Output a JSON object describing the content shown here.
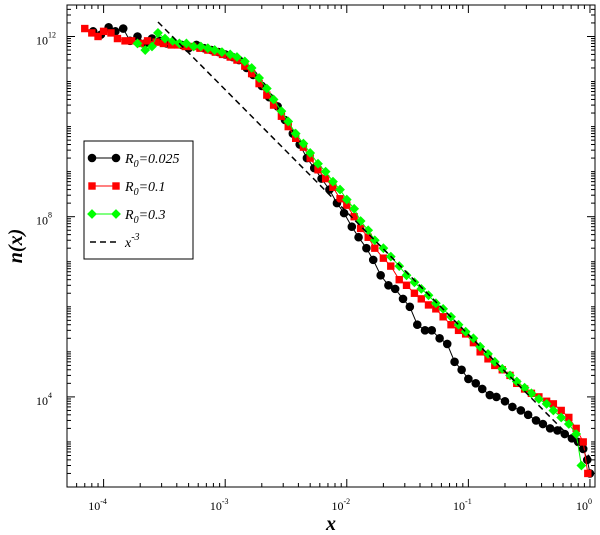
{
  "chart_data": {
    "type": "line",
    "title": "",
    "xlabel": "x",
    "ylabel": "n(x)",
    "xscale": "log",
    "yscale": "log",
    "xlim": [
      5e-05,
      1.1
    ],
    "ylim": [
      100,
      5000000000000
    ],
    "x_ticks": [
      {
        "base": "10",
        "exp": "-4",
        "value": 0.0001
      },
      {
        "base": "10",
        "exp": "-3",
        "value": 0.001
      },
      {
        "base": "10",
        "exp": "-2",
        "value": 0.01
      },
      {
        "base": "10",
        "exp": "-1",
        "value": 0.1
      },
      {
        "base": "10",
        "exp": "0",
        "value": 1
      }
    ],
    "y_ticks": [
      {
        "base": "10",
        "exp": "4",
        "value": 10000
      },
      {
        "base": "10",
        "exp": "8",
        "value": 100000000
      },
      {
        "base": "10",
        "exp": "12",
        "value": 1000000000000
      }
    ],
    "grid": false,
    "legend_position": "left-center",
    "series": [
      {
        "name": "R0=0.025",
        "label_main": "R",
        "label_sub": "0",
        "label_rest": "=0.025",
        "color": "#000000",
        "marker": "circle",
        "x": [
          8.2e-05,
          9.5e-05,
          0.00011,
          0.000125,
          0.000145,
          0.000165,
          0.00019,
          0.00022,
          0.00025,
          0.00029,
          0.00033,
          0.00038,
          0.00044,
          0.0005,
          0.00058,
          0.00067,
          0.00077,
          0.00088,
          0.001,
          0.00115,
          0.0013,
          0.0015,
          0.0017,
          0.002,
          0.0023,
          0.0027,
          0.0031,
          0.0036,
          0.0041,
          0.0047,
          0.0054,
          0.0062,
          0.0072,
          0.0083,
          0.0095,
          0.011,
          0.0125,
          0.0145,
          0.0165,
          0.019,
          0.022,
          0.025,
          0.029,
          0.033,
          0.038,
          0.044,
          0.05,
          0.058,
          0.067,
          0.077,
          0.088,
          0.1,
          0.115,
          0.13,
          0.15,
          0.17,
          0.2,
          0.23,
          0.27,
          0.31,
          0.36,
          0.41,
          0.47,
          0.54,
          0.62,
          0.71,
          0.8,
          0.88,
          0.95,
          1.0
        ],
        "y": [
          1300000000000.0,
          1100000000000.0,
          1600000000000.0,
          1300000000000.0,
          1500000000000.0,
          800000000000.0,
          1000000000000.0,
          700000000000.0,
          900000000000.0,
          800000000000.0,
          700000000000.0,
          700000000000.0,
          650000000000.0,
          550000000000.0,
          650000000000.0,
          550000000000.0,
          500000000000.0,
          450000000000.0,
          400000000000.0,
          350000000000.0,
          300000000000.0,
          200000000000.0,
          140000000000.0,
          80000000000.0,
          45000000000.0,
          28000000000.0,
          14000000000.0,
          7000000000.0,
          4000000000.0,
          2000000000.0,
          1200000000.0,
          700000000.0,
          400000000.0,
          200000000.0,
          120000000.0,
          60000000.0,
          35000000.0,
          20000000.0,
          11000000.0,
          5000000.0,
          3000000.0,
          2500000.0,
          1500000.0,
          1000000.0,
          400000.0,
          300000.0,
          300000.0,
          200000.0,
          150000.0,
          60000.0,
          40000.0,
          25000.0,
          20000.0,
          15000.0,
          11000.0,
          10000.0,
          8000.0,
          6000.0,
          5000.0,
          4000.0,
          3000.0,
          2500.0,
          2000.0,
          1800.0,
          1500.0,
          1200.0,
          1000.0,
          700,
          400,
          200
        ]
      },
      {
        "name": "R0=0.1",
        "label_main": "R",
        "label_sub": "0",
        "label_rest": "=0.1",
        "color": "#ff0000",
        "marker": "square",
        "x": [
          7e-05,
          8e-05,
          9e-05,
          0.0001,
          0.000115,
          0.00013,
          0.00015,
          0.00017,
          0.0002,
          0.00023,
          0.00027,
          0.00031,
          0.00036,
          0.00041,
          0.00047,
          0.00054,
          0.00062,
          0.00072,
          0.00083,
          0.00095,
          0.0011,
          0.00125,
          0.00145,
          0.00165,
          0.0019,
          0.0022,
          0.0025,
          0.0029,
          0.0033,
          0.0038,
          0.0044,
          0.005,
          0.0058,
          0.0067,
          0.0077,
          0.0088,
          0.01,
          0.0115,
          0.013,
          0.015,
          0.017,
          0.02,
          0.023,
          0.027,
          0.031,
          0.036,
          0.041,
          0.047,
          0.054,
          0.062,
          0.072,
          0.083,
          0.095,
          0.11,
          0.125,
          0.145,
          0.165,
          0.19,
          0.22,
          0.25,
          0.29,
          0.33,
          0.38,
          0.44,
          0.5,
          0.58,
          0.67,
          0.77,
          0.88,
          0.96
        ],
        "y": [
          1500000000000.0,
          1200000000000.0,
          1000000000000.0,
          1300000000000.0,
          1200000000000.0,
          900000000000.0,
          800000000000.0,
          800000000000.0,
          700000000000.0,
          800000000000.0,
          750000000000.0,
          700000000000.0,
          650000000000.0,
          650000000000.0,
          600000000000.0,
          600000000000.0,
          550000000000.0,
          500000000000.0,
          450000000000.0,
          400000000000.0,
          350000000000.0,
          300000000000.0,
          220000000000.0,
          150000000000.0,
          90000000000.0,
          50000000000.0,
          30000000000.0,
          17000000000.0,
          10000000000.0,
          5500000000.0,
          3500000000.0,
          2000000000.0,
          1100000000.0,
          700000000.0,
          450000000.0,
          250000000.0,
          180000000.0,
          100000000.0,
          55000000.0,
          35000000.0,
          20000000.0,
          12000000.0,
          8000000.0,
          4000000.0,
          3000000.0,
          2000000.0,
          1500000.0,
          1100000.0,
          900000.0,
          600000.0,
          400000.0,
          300000.0,
          250000.0,
          160000.0,
          100000.0,
          70000.0,
          50000.0,
          40000.0,
          30000.0,
          20000.0,
          15000.0,
          12000.0,
          10000.0,
          8000.0,
          7000.0,
          5000.0,
          3500.0,
          2000.0,
          1000.0,
          200
        ]
      },
      {
        "name": "R0=0.3",
        "label_main": "R",
        "label_sub": "0",
        "label_rest": "=0.3",
        "color": "#00ff00",
        "marker": "diamond",
        "x": [
          0.00019,
          0.00022,
          0.00025,
          0.00028,
          0.00032,
          0.00037,
          0.00042,
          0.00048,
          0.00055,
          0.00063,
          0.00072,
          0.00082,
          0.00094,
          0.0011,
          0.00125,
          0.00145,
          0.00165,
          0.0019,
          0.0022,
          0.0025,
          0.0029,
          0.0033,
          0.0038,
          0.0044,
          0.005,
          0.0058,
          0.0067,
          0.0077,
          0.0088,
          0.01,
          0.0115,
          0.013,
          0.015,
          0.017,
          0.02,
          0.023,
          0.027,
          0.031,
          0.036,
          0.041,
          0.047,
          0.054,
          0.062,
          0.072,
          0.083,
          0.095,
          0.11,
          0.125,
          0.145,
          0.165,
          0.19,
          0.22,
          0.25,
          0.29,
          0.33,
          0.38,
          0.44,
          0.5,
          0.58,
          0.67,
          0.77,
          0.85
        ],
        "y": [
          700000000000.0,
          500000000000.0,
          600000000000.0,
          1200000000000.0,
          900000000000.0,
          800000000000.0,
          700000000000.0,
          700000000000.0,
          600000000000.0,
          600000000000.0,
          550000000000.0,
          500000000000.0,
          450000000000.0,
          400000000000.0,
          350000000000.0,
          280000000000.0,
          200000000000.0,
          120000000000.0,
          70000000000.0,
          40000000000.0,
          22000000000.0,
          13000000000.0,
          7000000000.0,
          4200000000.0,
          2600000000.0,
          1500000000.0,
          1000000000.0,
          600000000.0,
          400000000.0,
          240000000.0,
          150000000.0,
          80000000.0,
          50000000.0,
          30000000.0,
          20000000.0,
          13000000.0,
          8000000.0,
          5000000.0,
          3500000.0,
          2500000.0,
          1800000.0,
          1200000.0,
          900000.0,
          600000.0,
          400000.0,
          280000.0,
          200000.0,
          130000.0,
          90000.0,
          60000.0,
          42000.0,
          30000.0,
          22000.0,
          16000.0,
          12000.0,
          9000.0,
          7000.0,
          5000.0,
          3500.0,
          2500.0,
          1500.0,
          300
        ]
      },
      {
        "name": "x^-3",
        "label_main": "x",
        "label_sup": "-3",
        "color": "#000000",
        "marker": "none",
        "dashed": true,
        "x": [
          0.00028,
          1.0
        ],
        "y": [
          2100000000000.0,
          460
        ]
      }
    ]
  }
}
